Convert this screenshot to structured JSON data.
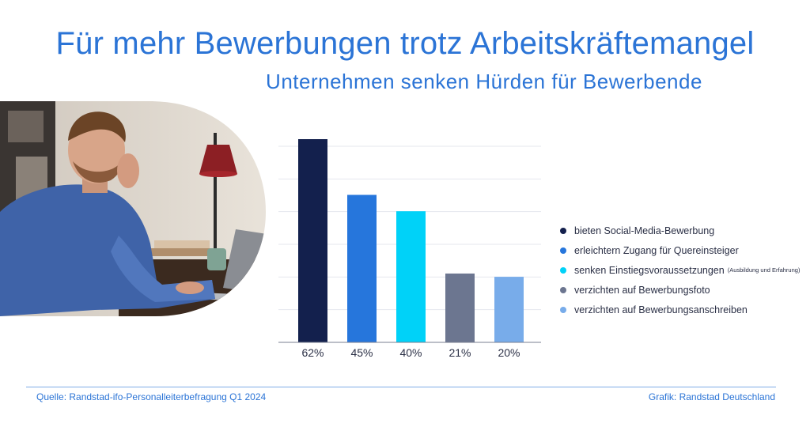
{
  "title": "Für mehr Bewerbungen trotz Arbeitskräftemangel",
  "subtitle": "Unternehmen senken Hürden für Bewerbende",
  "chart_data": {
    "type": "bar",
    "categories": [
      "bieten Social-Media-Bewerbung",
      "erleichtern Zugang für Quereinsteiger",
      "senken Einstiegsvoraussetzungen",
      "verzichten auf Bewerbungsfoto",
      "verzichten auf Bewerbungsanschreiben"
    ],
    "values": [
      62,
      45,
      40,
      21,
      20
    ],
    "value_labels": [
      "62%",
      "45%",
      "40%",
      "21%",
      "20%"
    ],
    "colors": [
      "#13204d",
      "#2676dc",
      "#00d2f8",
      "#6c7690",
      "#78acea"
    ],
    "ylim": [
      0,
      62
    ],
    "grid": true,
    "legend_position": "right",
    "legend": [
      {
        "label": "bieten Social-Media-Bewerbung",
        "note": ""
      },
      {
        "label": "erleichtern Zugang für Quereinsteiger",
        "note": ""
      },
      {
        "label": "senken Einstiegsvoraussetzungen",
        "note": "(Ausbildung und Erfahrung)"
      },
      {
        "label": "verzichten auf Bewerbungsfoto",
        "note": ""
      },
      {
        "label": "verzichten auf Bewerbungsanschreiben",
        "note": ""
      }
    ]
  },
  "footer": {
    "source": "Quelle: Randstad-ifo-Personalleiterbefragung Q1 2024",
    "credit": "Grafik: Randstad Deutschland"
  }
}
